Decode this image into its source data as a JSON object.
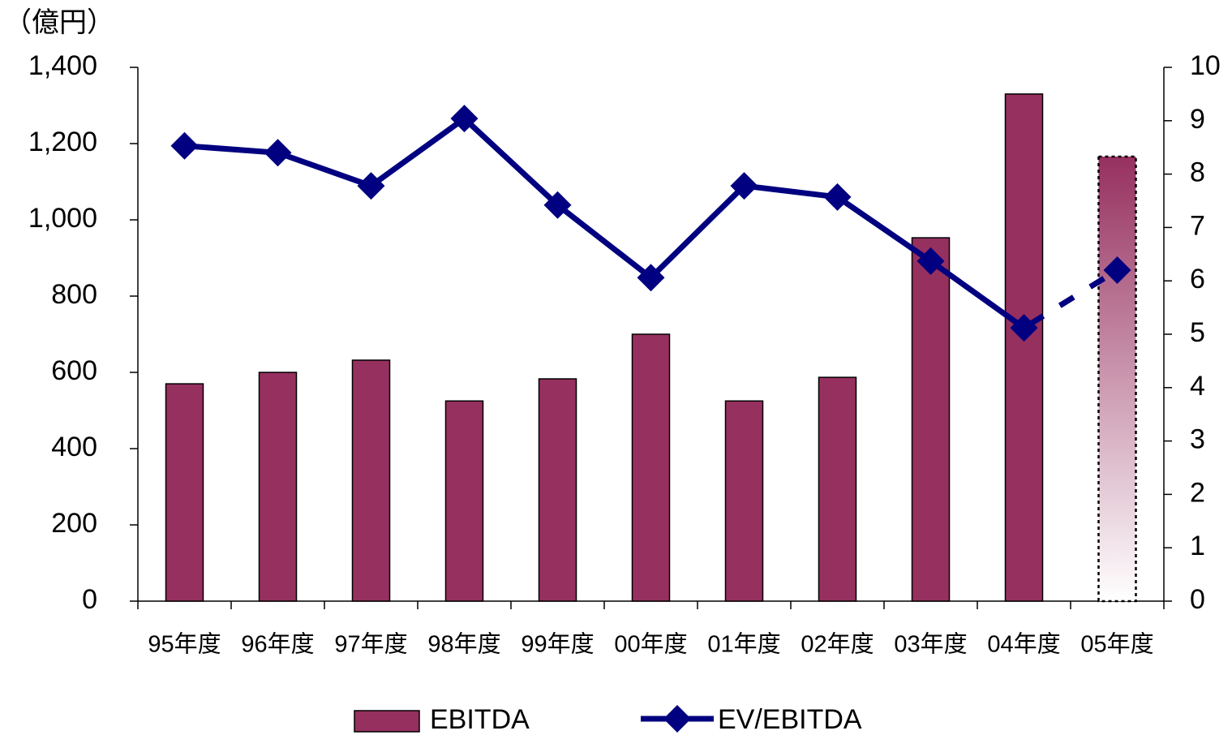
{
  "chart_data": {
    "type": "bar_line",
    "y_unit_label": "（億円）",
    "categories": [
      "95年度",
      "96年度",
      "97年度",
      "98年度",
      "99年度",
      "00年度",
      "01年度",
      "02年度",
      "03年度",
      "04年度",
      "05年度"
    ],
    "series": [
      {
        "name": "EBITDA",
        "type": "bar",
        "color": "#96305f",
        "values": [
          570,
          600,
          632,
          525,
          583,
          700,
          525,
          587,
          953,
          1330,
          1166
        ],
        "last_bar_forecast": true
      },
      {
        "name": "EV/EBITDA",
        "type": "line",
        "axis": "y2",
        "color": "#000080",
        "marker": "diamond",
        "values": [
          8.53,
          8.4,
          7.78,
          9.04,
          7.42,
          6.06,
          7.78,
          7.57,
          6.37,
          5.12,
          6.2
        ],
        "last_segment_dashed": true
      }
    ],
    "ylim": [
      0,
      1400
    ],
    "yticks": [
      0,
      200,
      400,
      600,
      800,
      {
        "value": 1000,
        "label": "1,000"
      },
      {
        "value": 1200,
        "label": "1,200"
      },
      {
        "value": 1400,
        "label": "1,400"
      }
    ],
    "y2lim": [
      0,
      10
    ],
    "y2ticks": [
      0,
      1,
      2,
      3,
      4,
      5,
      6,
      7,
      8,
      9,
      10
    ],
    "legend": "bottom"
  }
}
